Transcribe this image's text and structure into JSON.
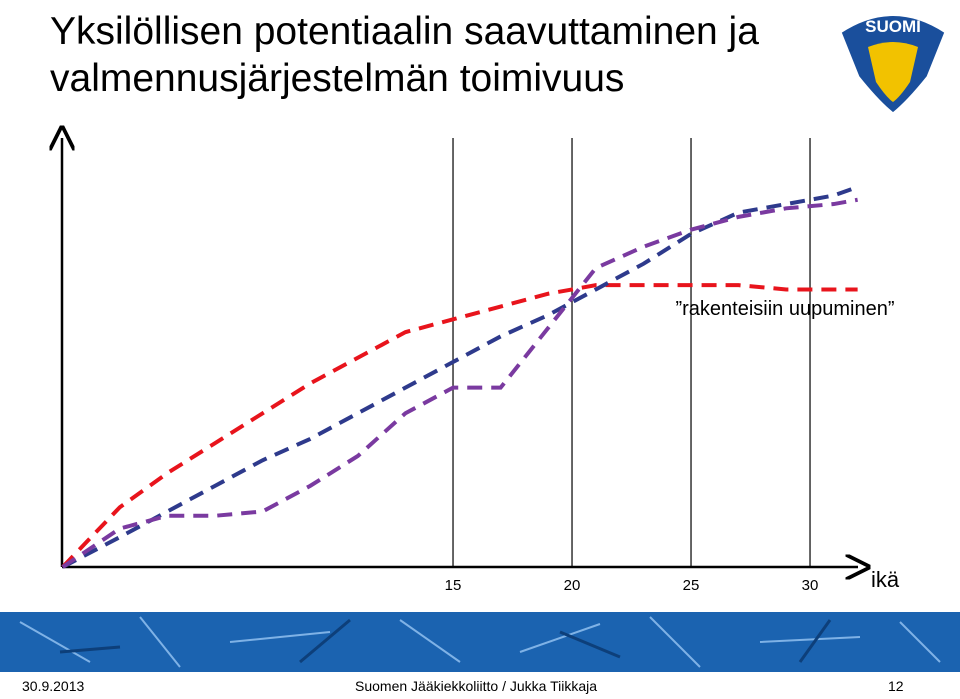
{
  "slide": {
    "title": "Yksilöllisen potentiaalin saavuttaminen ja valmennusjärjestelmän toimivuus",
    "logo_text": "SUOMI",
    "footer": {
      "date": "30.9.2013",
      "author": "Suomen Jääkiekkoliitto / Jukka Tiikkaja",
      "page": "12"
    }
  },
  "chart_data": {
    "type": "line",
    "x_label": "ikä",
    "annotation": "”rakenteisiin uupuminen”",
    "x": [
      -1.4,
      1,
      3,
      5,
      7,
      9,
      11,
      13,
      15,
      17,
      19,
      21,
      23,
      25,
      27,
      29,
      31,
      32
    ],
    "xlim": [
      -1.4,
      32.1
    ],
    "xticks": [
      15,
      20,
      25,
      30
    ],
    "ylim": [
      0,
      100
    ],
    "grid": true,
    "series": [
      {
        "color": "#e8141c",
        "values": [
          0,
          14,
          22,
          29,
          36,
          43,
          49,
          55,
          58,
          61,
          64,
          66,
          66,
          66,
          66,
          65,
          65,
          65
        ]
      },
      {
        "color": "#2e3a8c",
        "values": [
          0,
          7,
          13,
          19,
          25,
          30,
          36,
          42,
          48,
          54,
          59,
          65,
          71,
          78,
          83,
          85,
          87,
          89
        ]
      },
      {
        "color": "#7a3aa0",
        "values": [
          0,
          9,
          12,
          12,
          13,
          19,
          26,
          36,
          42,
          42,
          56,
          70,
          75,
          79,
          82,
          84,
          85,
          86
        ]
      }
    ]
  }
}
